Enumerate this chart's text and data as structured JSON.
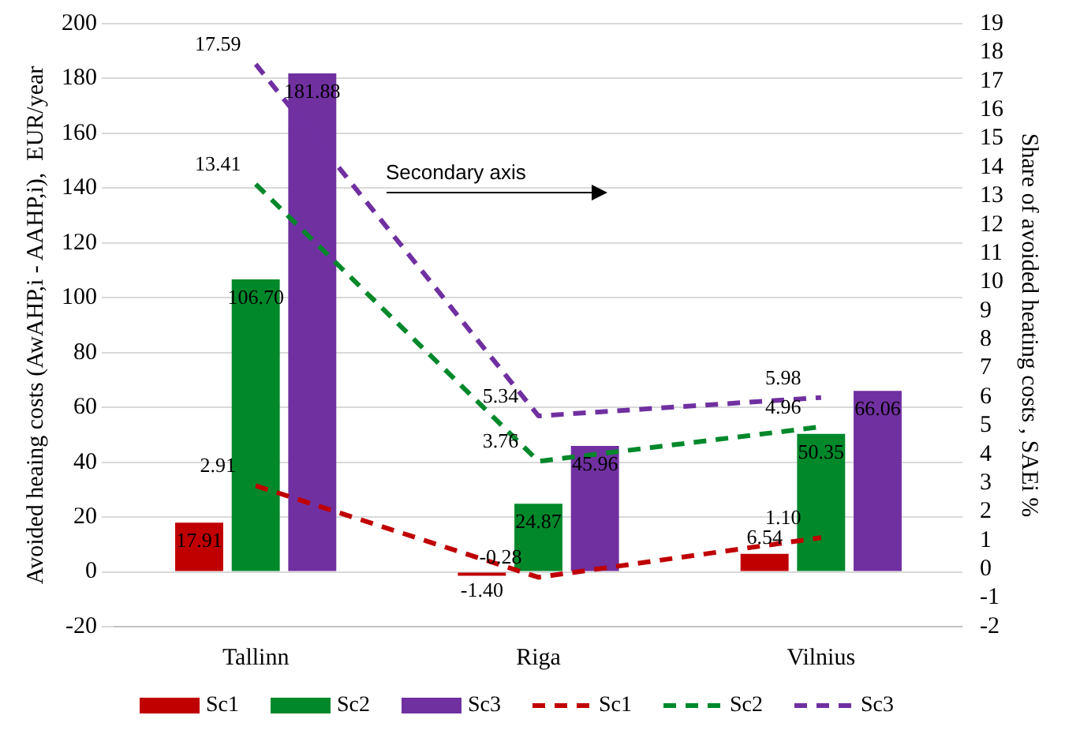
{
  "chart_data": {
    "type": "bar",
    "ylabel": "Avoided heaing costs (AwAHP,i - AAHP,i),  EUR/year",
    "y2label": "Share of avoided heating costs , SAEi %",
    "categories": [
      "Tallinn",
      "Riga",
      "Vilnius"
    ],
    "series": [
      {
        "name": "Sc1",
        "color": "#c00000",
        "values": [
          17.91,
          -1.4,
          6.54
        ],
        "value_labels": [
          "17.91",
          "-1.40",
          "6.54"
        ]
      },
      {
        "name": "Sc2",
        "color": "#00882b",
        "values": [
          106.7,
          24.87,
          50.35
        ],
        "value_labels": [
          "106.70",
          "24.87",
          "50.35"
        ]
      },
      {
        "name": "Sc3",
        "color": "#7030a0",
        "values": [
          181.88,
          45.96,
          66.06
        ],
        "value_labels": [
          "181.88",
          "45.96",
          "66.06"
        ]
      },
      {
        "name": "Sc1",
        "type": "line",
        "axis": "y2",
        "color": "#c00000",
        "values": [
          2.91,
          -0.28,
          1.1
        ],
        "value_labels": [
          "2.91",
          "-0.28",
          "1.10"
        ]
      },
      {
        "name": "Sc2",
        "type": "line",
        "axis": "y2",
        "color": "#00882b",
        "values": [
          13.41,
          3.76,
          4.96
        ],
        "value_labels": [
          "13.41",
          "3.76",
          "4.96"
        ]
      },
      {
        "name": "Sc3",
        "type": "line",
        "axis": "y2",
        "color": "#7030a0",
        "values": [
          17.59,
          5.34,
          5.98
        ],
        "value_labels": [
          "17.59",
          "5.34",
          "5.98"
        ]
      }
    ],
    "ylim": [
      -20,
      200
    ],
    "yticks": [
      -20,
      0,
      20,
      40,
      60,
      80,
      100,
      120,
      140,
      160,
      180,
      200
    ],
    "y2lim": [
      -2,
      19
    ],
    "y2ticks": [
      -2,
      -1,
      0,
      1,
      2,
      3,
      4,
      5,
      6,
      7,
      8,
      9,
      10,
      11,
      12,
      13,
      14,
      15,
      16,
      17,
      18,
      19
    ],
    "annotations": [
      "Secondary axis"
    ],
    "grid": "y",
    "legend": "bottom",
    "marker": "none",
    "line_style": "dashed"
  }
}
